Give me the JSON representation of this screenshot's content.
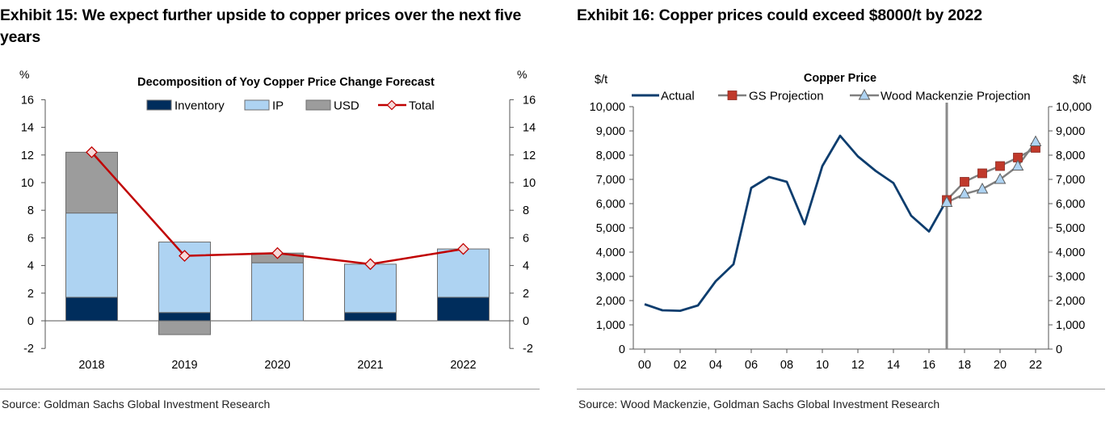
{
  "left": {
    "exhibit_title": "Exhibit 15: We expect further upside to copper prices over the next five years",
    "source": "Source: Goldman Sachs Global Investment Research"
  },
  "right": {
    "exhibit_title": "Exhibit 16: Copper prices could exceed $8000/t by 2022",
    "source": "Source: Wood Mackenzie, Goldman Sachs Global Investment Research"
  },
  "colors": {
    "inventory": "#002d5c",
    "ip": "#aed3f2",
    "usd": "#9c9c9c",
    "total": "#c00000",
    "actual": "#0d3d6e",
    "gs": "#c0392b",
    "wm": "#7f7f7f",
    "wm_marker": "#aed3f2"
  },
  "chart_data": [
    {
      "type": "bar",
      "stacked": true,
      "title": "Decomposition of Yoy Copper Price Change Forecast",
      "ylabel_left": "%",
      "ylabel_right": "%",
      "ylim": [
        -2,
        16
      ],
      "yticks": [
        "-2",
        "0",
        "2",
        "4",
        "6",
        "8",
        "10",
        "12",
        "14",
        "16"
      ],
      "categories": [
        "2018",
        "2019",
        "2020",
        "2021",
        "2022"
      ],
      "series": [
        {
          "name": "Inventory",
          "type": "bar",
          "values": [
            1.7,
            0.6,
            0.0,
            0.6,
            1.7
          ]
        },
        {
          "name": "IP",
          "type": "bar",
          "values": [
            6.1,
            5.1,
            4.2,
            3.5,
            3.5
          ]
        },
        {
          "name": "USD",
          "type": "bar",
          "values": [
            4.4,
            -1.0,
            0.7,
            0.0,
            0.0
          ]
        },
        {
          "name": "Total",
          "type": "line",
          "values": [
            12.2,
            4.7,
            4.9,
            4.1,
            5.2
          ]
        }
      ],
      "legend": "top"
    },
    {
      "type": "line",
      "title": "Copper Price",
      "ylabel_left": "$/t",
      "ylabel_right": "$/t",
      "ylim": [
        0,
        10000
      ],
      "yticks": [
        "0",
        "1,000",
        "2,000",
        "3,000",
        "4,000",
        "5,000",
        "6,000",
        "7,000",
        "8,000",
        "9,000",
        "10,000"
      ],
      "xlim": [
        2000,
        2022
      ],
      "xticks": [
        "00",
        "02",
        "04",
        "06",
        "08",
        "10",
        "12",
        "14",
        "16",
        "18",
        "20",
        "22"
      ],
      "vline_x": 2017,
      "series": [
        {
          "name": "Actual",
          "x": [
            2000,
            2001,
            2002,
            2003,
            2004,
            2005,
            2006,
            2007,
            2008,
            2009,
            2010,
            2011,
            2012,
            2013,
            2014,
            2015,
            2016,
            2017
          ],
          "y": [
            1850,
            1600,
            1580,
            1800,
            2800,
            3500,
            6650,
            7100,
            6900,
            5150,
            7550,
            8800,
            7950,
            7350,
            6850,
            5500,
            4850,
            6150
          ]
        },
        {
          "name": "GS Projection",
          "x": [
            2017,
            2018,
            2019,
            2020,
            2021,
            2022
          ],
          "y": [
            6150,
            6900,
            7250,
            7550,
            7900,
            8300
          ]
        },
        {
          "name": "Wood Mackenzie Projection",
          "x": [
            2017,
            2018,
            2019,
            2020,
            2021,
            2022
          ],
          "y": [
            6050,
            6400,
            6600,
            7000,
            7550,
            8550
          ]
        }
      ],
      "legend": "top"
    }
  ]
}
